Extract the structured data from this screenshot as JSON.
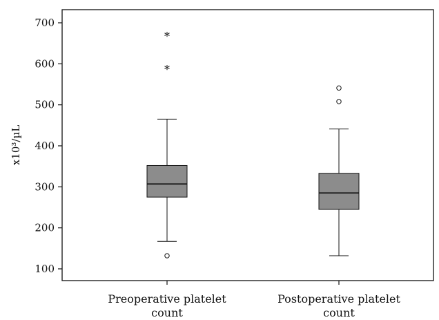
{
  "chart_data": {
    "type": "boxplot",
    "title": "",
    "xlabel": "",
    "ylabel": "x10³/µL",
    "ylim": [
      80,
      730
    ],
    "yticks": [
      100,
      200,
      300,
      400,
      500,
      600,
      700
    ],
    "grid": false,
    "box_color": "#8c8c8c",
    "categories": [
      {
        "label_lines": [
          "Preoperative platelet",
          "count"
        ]
      },
      {
        "label_lines": [
          "Postoperative platelet",
          "count"
        ]
      }
    ],
    "boxes": [
      {
        "whisker_low": 167,
        "q1": 275,
        "median": 307,
        "q3": 352,
        "whisker_high": 465,
        "outliers": [
          132
        ],
        "extremes": [
          589,
          670
        ]
      },
      {
        "whisker_low": 132,
        "q1": 245,
        "median": 285,
        "q3": 333,
        "whisker_high": 441,
        "outliers": [
          508,
          541
        ],
        "extremes": []
      }
    ]
  }
}
